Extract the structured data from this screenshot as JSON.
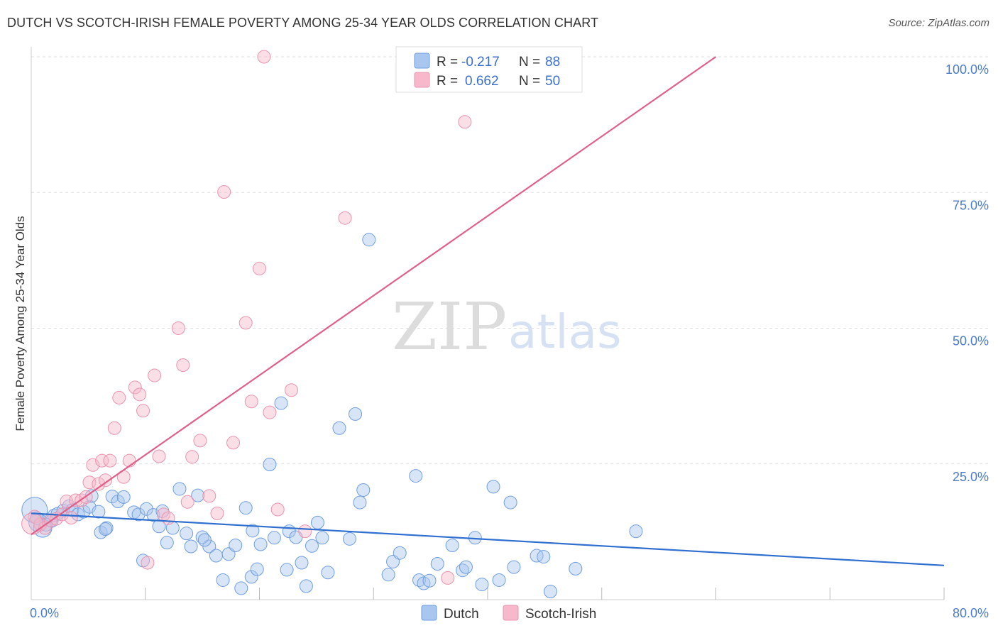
{
  "title": "DUTCH VS SCOTCH-IRISH FEMALE POVERTY AMONG 25-34 YEAR OLDS CORRELATION CHART",
  "source": "Source: ZipAtlas.com",
  "watermark": {
    "zip": "ZIP",
    "atlas": "atlas"
  },
  "legend": {
    "rows": [
      {
        "r_label": "R =",
        "r_value": "-0.217",
        "n_label": "N =",
        "n_value": "88"
      },
      {
        "r_label": "R =",
        "r_value": "0.662",
        "n_label": "N =",
        "n_value": "50"
      }
    ]
  },
  "colors": {
    "dutch_fill": "#a9c6ee",
    "dutch_stroke": "#6f9de0",
    "dutch_line": "#2f6fcf",
    "scotch_fill": "#f6b8ca",
    "scotch_stroke": "#e894ae",
    "scotch_line": "#e0608a",
    "tick_text": "#4a7cc9",
    "grid": "#dedede"
  },
  "chart_data": {
    "type": "scatter",
    "title": "DUTCH VS SCOTCH-IRISH FEMALE POVERTY AMONG 25-34 YEAR OLDS CORRELATION CHART",
    "xlabel": "",
    "ylabel": "Female Poverty Among 25-34 Year Olds",
    "xlim": [
      0,
      80
    ],
    "ylim": [
      0,
      100
    ],
    "x_tick_labels": [
      "0.0%",
      "80.0%"
    ],
    "y_tick_labels": [
      "25.0%",
      "50.0%",
      "75.0%",
      "100.0%"
    ],
    "y_ticks": [
      25,
      50,
      75,
      100
    ],
    "grid": true,
    "legend_position": "bottom",
    "series": [
      {
        "name": "Dutch",
        "R": -0.217,
        "N": 88,
        "trend": {
          "x": [
            0,
            80
          ],
          "y": [
            15.9,
            6.3
          ]
        },
        "points": [
          [
            0.3,
            16.5
          ],
          [
            0.6,
            14.2
          ],
          [
            1.0,
            13.2
          ],
          [
            1.3,
            13.8
          ],
          [
            1.8,
            14.5
          ],
          [
            0.5,
            15.0
          ],
          [
            2.0,
            15.5
          ],
          [
            2.3,
            15.8
          ],
          [
            2.8,
            16.4
          ],
          [
            3.3,
            17.2
          ],
          [
            3.6,
            16.5
          ],
          [
            4.1,
            15.7
          ],
          [
            4.6,
            16.2
          ],
          [
            5.1,
            17.1
          ],
          [
            5.3,
            19.1
          ],
          [
            5.9,
            16.2
          ],
          [
            6.1,
            12.4
          ],
          [
            6.6,
            13.2
          ],
          [
            7.1,
            19.0
          ],
          [
            7.6,
            18.1
          ],
          [
            8.1,
            18.9
          ],
          [
            9.0,
            16.1
          ],
          [
            9.4,
            15.7
          ],
          [
            10.1,
            16.7
          ],
          [
            10.7,
            15.6
          ],
          [
            11.2,
            13.5
          ],
          [
            11.5,
            16.3
          ],
          [
            11.9,
            10.5
          ],
          [
            12.4,
            13.2
          ],
          [
            13.0,
            20.4
          ],
          [
            13.6,
            12.2
          ],
          [
            14.0,
            9.8
          ],
          [
            14.6,
            19.2
          ],
          [
            15.0,
            11.5
          ],
          [
            15.6,
            9.8
          ],
          [
            16.2,
            8.1
          ],
          [
            16.8,
            3.6
          ],
          [
            17.3,
            8.4
          ],
          [
            17.9,
            10.0
          ],
          [
            18.4,
            2.1
          ],
          [
            18.8,
            16.9
          ],
          [
            19.3,
            4.2
          ],
          [
            19.8,
            5.6
          ],
          [
            20.1,
            10.2
          ],
          [
            20.9,
            24.9
          ],
          [
            21.3,
            11.4
          ],
          [
            21.9,
            36.2
          ],
          [
            22.6,
            12.6
          ],
          [
            23.2,
            11.5
          ],
          [
            23.7,
            6.8
          ],
          [
            24.1,
            2.5
          ],
          [
            24.6,
            9.9
          ],
          [
            25.1,
            14.2
          ],
          [
            25.5,
            11.4
          ],
          [
            26.0,
            5.0
          ],
          [
            27.0,
            31.6
          ],
          [
            27.9,
            11.2
          ],
          [
            28.4,
            34.2
          ],
          [
            28.8,
            17.9
          ],
          [
            29.1,
            20.2
          ],
          [
            29.6,
            66.3
          ],
          [
            31.3,
            4.6
          ],
          [
            31.7,
            7.0
          ],
          [
            32.3,
            8.6
          ],
          [
            33.7,
            22.8
          ],
          [
            34.0,
            3.6
          ],
          [
            34.4,
            3.0
          ],
          [
            34.9,
            3.5
          ],
          [
            35.6,
            6.6
          ],
          [
            36.9,
            10.0
          ],
          [
            37.8,
            5.4
          ],
          [
            38.1,
            6.0
          ],
          [
            38.9,
            11.4
          ],
          [
            39.5,
            2.8
          ],
          [
            40.5,
            20.8
          ],
          [
            41.0,
            3.6
          ],
          [
            42.0,
            17.9
          ],
          [
            42.3,
            6.0
          ],
          [
            44.3,
            8.1
          ],
          [
            44.9,
            7.9
          ],
          [
            45.5,
            1.5
          ],
          [
            47.7,
            5.7
          ],
          [
            53.0,
            12.6
          ],
          [
            9.8,
            7.2
          ],
          [
            15.2,
            11.0
          ],
          [
            22.4,
            5.5
          ],
          [
            19.4,
            12.7
          ],
          [
            6.5,
            13.0
          ]
        ]
      },
      {
        "name": "Scotch-Irish",
        "R": 0.662,
        "N": 50,
        "trend": {
          "x": [
            0,
            60
          ],
          "y": [
            12.0,
            100
          ]
        },
        "points": [
          [
            0.3,
            15.3
          ],
          [
            0.8,
            13.9
          ],
          [
            1.2,
            13.2
          ],
          [
            1.7,
            14.6
          ],
          [
            2.2,
            14.9
          ],
          [
            2.7,
            15.7
          ],
          [
            3.1,
            18.1
          ],
          [
            3.5,
            15.1
          ],
          [
            3.9,
            18.3
          ],
          [
            4.4,
            18.3
          ],
          [
            4.8,
            18.9
          ],
          [
            5.1,
            21.6
          ],
          [
            5.4,
            24.8
          ],
          [
            5.9,
            21.3
          ],
          [
            6.2,
            25.6
          ],
          [
            6.5,
            22.0
          ],
          [
            6.9,
            25.6
          ],
          [
            7.3,
            31.6
          ],
          [
            7.7,
            37.2
          ],
          [
            8.1,
            22.6
          ],
          [
            8.6,
            25.6
          ],
          [
            9.1,
            39.1
          ],
          [
            9.5,
            37.8
          ],
          [
            9.8,
            34.8
          ],
          [
            10.2,
            6.8
          ],
          [
            10.8,
            41.3
          ],
          [
            11.2,
            26.4
          ],
          [
            11.6,
            15.7
          ],
          [
            12.0,
            15.0
          ],
          [
            12.9,
            50.0
          ],
          [
            13.3,
            43.2
          ],
          [
            13.7,
            18.0
          ],
          [
            14.1,
            26.3
          ],
          [
            14.8,
            29.3
          ],
          [
            15.6,
            19.1
          ],
          [
            16.3,
            15.9
          ],
          [
            16.9,
            75.1
          ],
          [
            17.7,
            28.9
          ],
          [
            18.8,
            51.0
          ],
          [
            19.3,
            36.5
          ],
          [
            20.0,
            61.0
          ],
          [
            20.9,
            34.5
          ],
          [
            21.6,
            16.6
          ],
          [
            22.8,
            38.6
          ],
          [
            24.0,
            12.6
          ],
          [
            27.5,
            70.3
          ],
          [
            20.4,
            100.0
          ],
          [
            38.0,
            88.0
          ],
          [
            36.5,
            4.0
          ],
          [
            0.1,
            14.0
          ]
        ]
      }
    ]
  },
  "bottom_legend": [
    {
      "label": "Dutch"
    },
    {
      "label": "Scotch-Irish"
    }
  ]
}
